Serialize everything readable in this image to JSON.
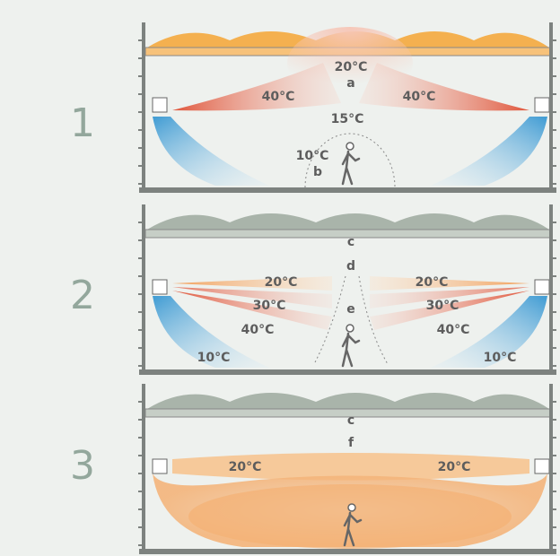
{
  "panels": [
    {
      "number": "1",
      "labels": [
        "20°C",
        "a",
        "40°C",
        "40°C",
        "15°C",
        "10°C",
        "b"
      ]
    },
    {
      "number": "2",
      "labels": [
        "c",
        "d",
        "20°C",
        "20°C",
        "30°C",
        "e",
        "30°C",
        "40°C",
        "40°C",
        "10°C",
        "10°C"
      ]
    },
    {
      "number": "3",
      "labels": [
        "c",
        "f",
        "20°C",
        "20°C"
      ]
    }
  ]
}
